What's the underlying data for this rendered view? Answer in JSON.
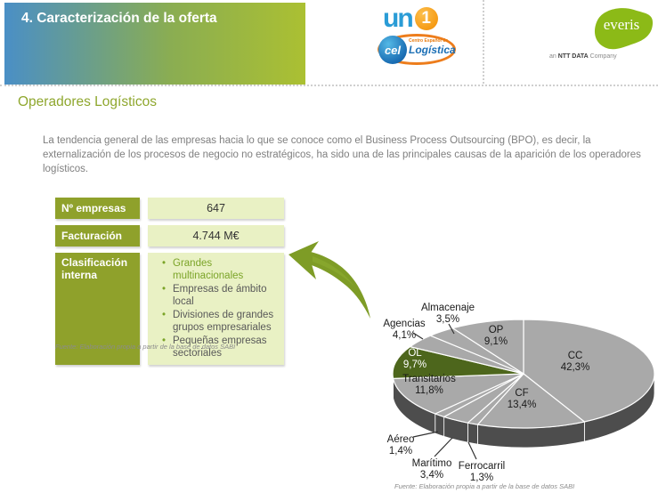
{
  "slide": {
    "title": "4. Caracterización de la oferta",
    "section_title": "Operadores Logísticos",
    "intro_text": "La tendencia general de las empresas hacia lo que se conoce como el Business Process Outsourcing (BPO), es decir, la externalización de los procesos de negocio no estratégicos, ha sido una de las principales causas de la aparición de los operadores logísticos."
  },
  "logos": {
    "uno": {
      "text_un": "un",
      "text_one": "1"
    },
    "cel": {
      "ball": "cel",
      "line1": "Centro Español de",
      "line2": "Logística"
    },
    "everis": {
      "name": "everis",
      "tagline_an": "an ",
      "tagline_ntt": "NTT DATA",
      "tagline_company": " Company"
    }
  },
  "info_table": {
    "rows": [
      {
        "label": "Nº empresas",
        "value": "647"
      },
      {
        "label": "Facturación",
        "value": "4.744 M€"
      }
    ],
    "classification_label": "Clasificación interna",
    "classification_items": [
      "Grandes multinacionales",
      "Empresas de ámbito local",
      "Divisiones de grandes grupos empresariales",
      "Pequeñas empresas sectoriales"
    ],
    "source": "Fuente: Elaboración propia a partir de la base de datos SABI"
  },
  "chart_data": {
    "type": "pie",
    "style": "3d",
    "start_angle_deg": 90,
    "direction": "clockwise",
    "legend": "none",
    "source": "Fuente: Elaboración propia a partir de la base de datos SABI",
    "default_color": "#a9a9a9",
    "default_side_color": "#4d4d4d",
    "slices": [
      {
        "label": "CC",
        "value": 42.3,
        "pct_label": "42,3%",
        "label_pos": [
          246,
          73
        ]
      },
      {
        "label": "CF",
        "value": 13.4,
        "pct_label": "13,4%",
        "label_pos": [
          186,
          115
        ]
      },
      {
        "label": "Ferrocarril",
        "value": 1.3,
        "pct_label": "1,3%",
        "label_pos": [
          141,
          197
        ],
        "leader": [
          [
            135,
            186
          ],
          [
            126,
            167
          ]
        ]
      },
      {
        "label": "Marítimo",
        "value": 3.4,
        "pct_label": "3,4%",
        "label_pos": [
          85,
          194
        ],
        "leader": [
          [
            88,
            183
          ],
          [
            108,
            162
          ]
        ]
      },
      {
        "label": "Aéreo",
        "value": 1.4,
        "pct_label": "1,4%",
        "label_pos": [
          50,
          167
        ],
        "leader": [
          [
            64,
            161
          ],
          [
            92,
            155
          ]
        ]
      },
      {
        "label": "Transitarios",
        "value": 11.8,
        "pct_label": "11,8%",
        "label_pos": [
          82,
          99
        ]
      },
      {
        "label": "OL",
        "value": 9.7,
        "pct_label": "9,7%",
        "label_pos": [
          66,
          70
        ],
        "color": "#4d661c",
        "side_color": "#2e3c10",
        "label_color": "#ffffff"
      },
      {
        "label": "Agencias",
        "value": 4.1,
        "pct_label": "4,1%",
        "label_pos": [
          54,
          37
        ],
        "leader": [
          [
            64,
            44
          ],
          [
            75,
            51
          ]
        ]
      },
      {
        "label": "Almacenaje",
        "value": 3.5,
        "pct_label": "3,5%",
        "label_pos": [
          103,
          19
        ],
        "leader": [
          [
            104,
            34
          ],
          [
            110,
            45
          ]
        ]
      },
      {
        "label": "OP",
        "value": 9.1,
        "pct_label": "9,1%",
        "label_pos": [
          157,
          44
        ]
      }
    ]
  }
}
